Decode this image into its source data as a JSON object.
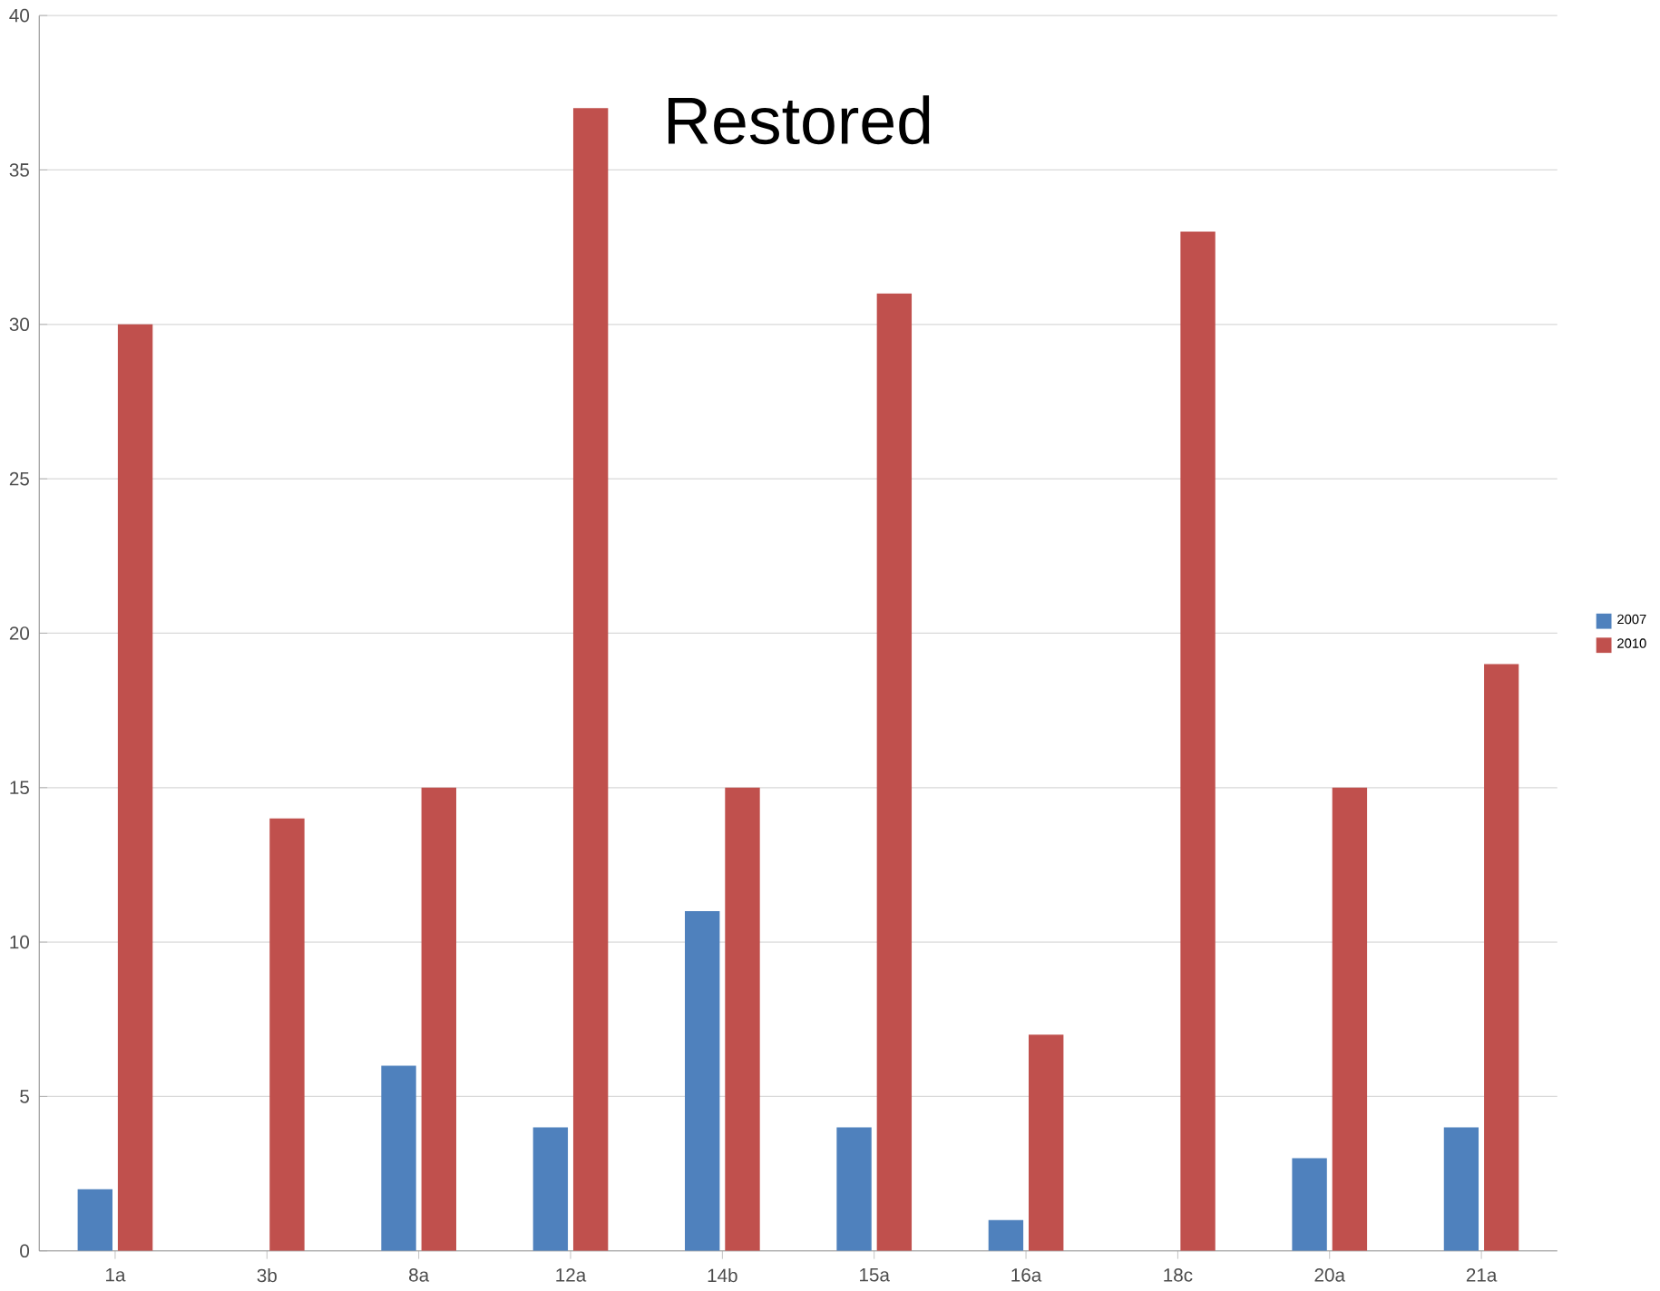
{
  "chart_data": {
    "type": "bar",
    "title": "Restored",
    "categories": [
      "1a",
      "3b",
      "8a",
      "12a",
      "14b",
      "15a",
      "16a",
      "18c",
      "20a",
      "21a"
    ],
    "series": [
      {
        "name": "2007",
        "color": "#4f81bd",
        "values": [
          2,
          null,
          6,
          4,
          11,
          4,
          1,
          null,
          3,
          4
        ]
      },
      {
        "name": "2010",
        "color": "#c0504d",
        "values": [
          30,
          14,
          15,
          37,
          15,
          31,
          7,
          33,
          15,
          19
        ]
      }
    ],
    "ylim": [
      0,
      40
    ],
    "yticks": [
      0,
      5,
      10,
      15,
      20,
      25,
      30,
      35,
      40
    ],
    "grid": "y",
    "legend": "right"
  }
}
